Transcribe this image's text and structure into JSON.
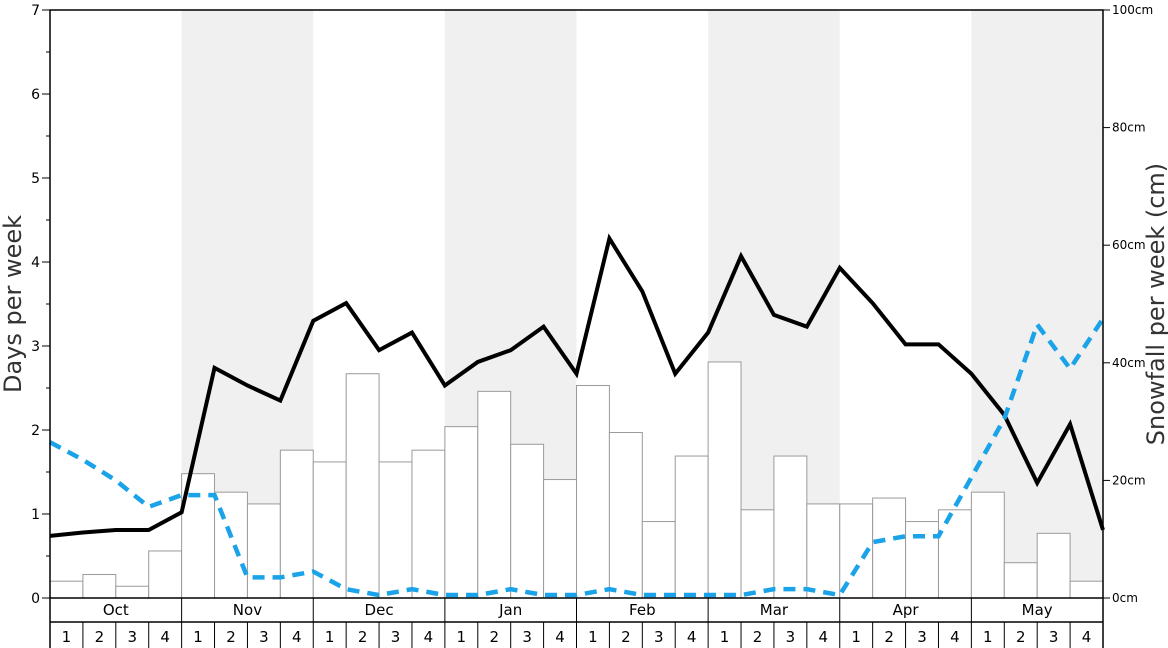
{
  "chart_data": {
    "type": "bar+line",
    "months": [
      "Oct",
      "Nov",
      "Dec",
      "Jan",
      "Feb",
      "Mar",
      "Apr",
      "May"
    ],
    "weeks": [
      "1",
      "2",
      "3",
      "4"
    ],
    "left_axis": {
      "label": "Days per week",
      "range": [
        0,
        7
      ],
      "ticks": [
        "0",
        "1",
        "2",
        "3",
        "4",
        "5",
        "6",
        "7"
      ]
    },
    "right_axis": {
      "label": "Snowfall per week (cm)",
      "range": [
        0,
        100
      ],
      "ticks": [
        "0cm",
        "20cm",
        "40cm",
        "60cm",
        "80cm",
        "100cm"
      ]
    },
    "grid": false,
    "shaded_months": [
      "Nov",
      "Jan",
      "Mar",
      "May"
    ],
    "colors": {
      "days_line": "#000000",
      "snow_line": "#1aa3e8",
      "bar_fill": "#ffffff",
      "bar_stroke": "#9a9a9a",
      "band": "#f0f0f0"
    },
    "bars_days": [
      0.2,
      0.28,
      0.14,
      0.56,
      1.48,
      1.26,
      1.12,
      1.76,
      1.62,
      2.67,
      1.62,
      1.76,
      2.04,
      2.46,
      1.83,
      1.41,
      2.53,
      1.97,
      0.91,
      1.69,
      2.81,
      1.05,
      1.69,
      1.12,
      1.12,
      1.19,
      0.91,
      1.05,
      1.26,
      0.42,
      0.77,
      0.2
    ],
    "days_line": [
      0.74,
      0.78,
      0.81,
      0.81,
      1.02,
      2.74,
      2.53,
      2.35,
      3.3,
      3.51,
      2.95,
      3.16,
      2.53,
      2.81,
      2.95,
      3.23,
      2.67,
      4.28,
      3.65,
      2.67,
      3.16,
      4.07,
      3.37,
      3.23,
      3.93,
      3.51,
      3.02,
      3.02,
      2.67,
      2.18,
      1.37,
      2.07,
      0.81
    ],
    "snowfall_cm": [
      26.5,
      23.5,
      20,
      15.5,
      17.5,
      17.5,
      3.5,
      3.5,
      4.5,
      1.5,
      0.5,
      1.5,
      0.5,
      0.5,
      1.5,
      0.5,
      0.5,
      1.5,
      0.5,
      0.5,
      0.5,
      0.5,
      1.5,
      1.5,
      0.5,
      9.5,
      10.5,
      10.5,
      20.5,
      30.5,
      46.5,
      39,
      47.5
    ]
  }
}
